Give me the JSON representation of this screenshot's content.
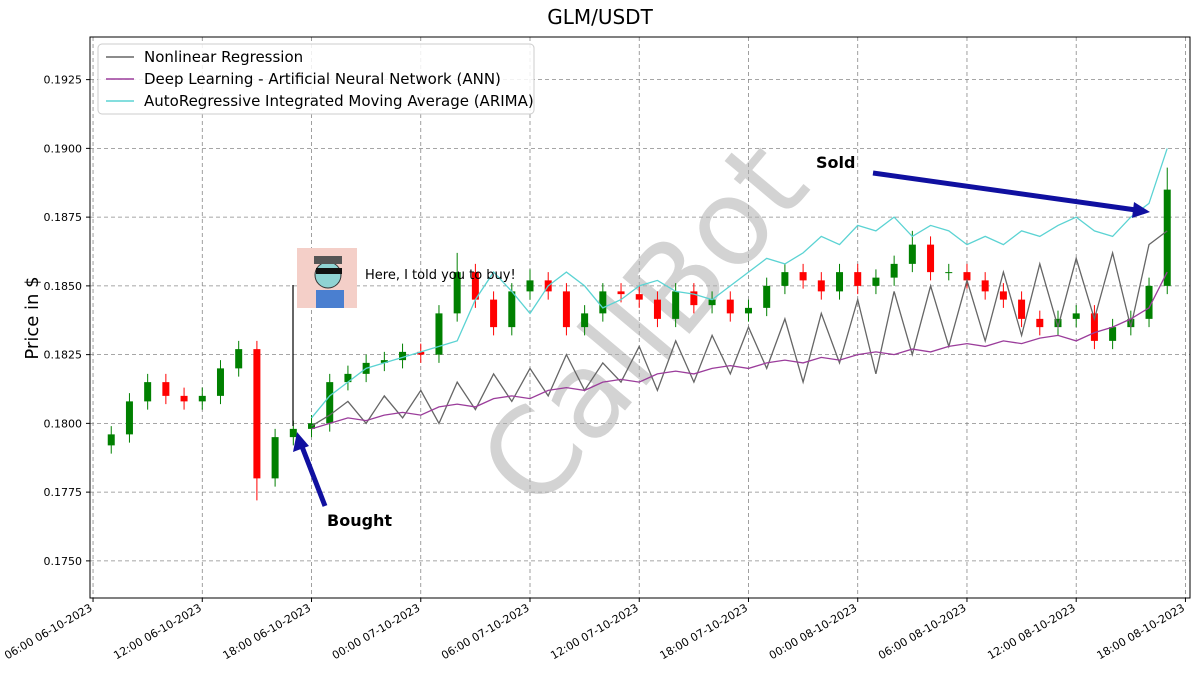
{
  "chart_data": {
    "type": "candlestick",
    "title": "GLM/USDT",
    "y_label": "Price in $",
    "watermark": "CallBot",
    "x": [
      "2023-10-06T07:00",
      "2023-10-06T08:00",
      "2023-10-06T09:00",
      "2023-10-06T10:00",
      "2023-10-06T11:00",
      "2023-10-06T12:00",
      "2023-10-06T13:00",
      "2023-10-06T14:00",
      "2023-10-06T15:00",
      "2023-10-06T16:00",
      "2023-10-06T17:00",
      "2023-10-06T18:00",
      "2023-10-06T19:00",
      "2023-10-06T20:00",
      "2023-10-06T21:00",
      "2023-10-06T22:00",
      "2023-10-06T23:00",
      "2023-10-07T00:00",
      "2023-10-07T01:00",
      "2023-10-07T02:00",
      "2023-10-07T03:00",
      "2023-10-07T04:00",
      "2023-10-07T05:00",
      "2023-10-07T06:00",
      "2023-10-07T07:00",
      "2023-10-07T08:00",
      "2023-10-07T09:00",
      "2023-10-07T10:00",
      "2023-10-07T11:00",
      "2023-10-07T12:00",
      "2023-10-07T13:00",
      "2023-10-07T14:00",
      "2023-10-07T15:00",
      "2023-10-07T16:00",
      "2023-10-07T17:00",
      "2023-10-07T18:00",
      "2023-10-07T19:00",
      "2023-10-07T20:00",
      "2023-10-07T21:00",
      "2023-10-07T22:00",
      "2023-10-07T23:00",
      "2023-10-08T00:00",
      "2023-10-08T01:00",
      "2023-10-08T02:00",
      "2023-10-08T03:00",
      "2023-10-08T04:00",
      "2023-10-08T05:00",
      "2023-10-08T06:00",
      "2023-10-08T07:00",
      "2023-10-08T08:00",
      "2023-10-08T09:00",
      "2023-10-08T10:00",
      "2023-10-08T11:00",
      "2023-10-08T12:00",
      "2023-10-08T13:00",
      "2023-10-08T14:00",
      "2023-10-08T15:00",
      "2023-10-08T16:00",
      "2023-10-08T17:00"
    ],
    "open": [
      0.1792,
      0.1796,
      0.1808,
      0.1815,
      0.181,
      0.1808,
      0.181,
      0.182,
      0.1827,
      0.178,
      0.1795,
      0.1798,
      0.18,
      0.1815,
      0.1818,
      0.1822,
      0.1823,
      0.1826,
      0.1825,
      0.184,
      0.1855,
      0.1845,
      0.1835,
      0.1848,
      0.1852,
      0.1848,
      0.1835,
      0.184,
      0.1848,
      0.1847,
      0.1845,
      0.1838,
      0.1848,
      0.1843,
      0.1845,
      0.184,
      0.1842,
      0.185,
      0.1855,
      0.1852,
      0.1848,
      0.1855,
      0.185,
      0.1853,
      0.1858,
      0.1865,
      0.1855,
      0.1855,
      0.1852,
      0.1848,
      0.1845,
      0.1838,
      0.1835,
      0.1838,
      0.184,
      0.183,
      0.1835,
      0.1838,
      0.185
    ],
    "high": [
      0.1799,
      0.1811,
      0.1818,
      0.1818,
      0.1813,
      0.1813,
      0.1823,
      0.183,
      0.183,
      0.1798,
      0.1801,
      0.1803,
      0.1818,
      0.1821,
      0.1825,
      0.1826,
      0.1829,
      0.1829,
      0.1843,
      0.1862,
      0.1858,
      0.1848,
      0.1851,
      0.1856,
      0.1855,
      0.1851,
      0.1843,
      0.1851,
      0.1851,
      0.185,
      0.1848,
      0.1851,
      0.1851,
      0.1848,
      0.1848,
      0.1845,
      0.1853,
      0.1858,
      0.1858,
      0.1855,
      0.1858,
      0.1858,
      0.1856,
      0.1861,
      0.187,
      0.1868,
      0.1858,
      0.1858,
      0.1855,
      0.1851,
      0.1848,
      0.1841,
      0.1841,
      0.1843,
      0.1843,
      0.1838,
      0.1841,
      0.1853,
      0.1893
    ],
    "low": [
      0.1789,
      0.1793,
      0.1805,
      0.1807,
      0.1805,
      0.1805,
      0.1807,
      0.1817,
      0.1772,
      0.1777,
      0.1792,
      0.1795,
      0.1797,
      0.1812,
      0.1815,
      0.1819,
      0.182,
      0.1822,
      0.1822,
      0.1837,
      0.1842,
      0.1832,
      0.1832,
      0.1845,
      0.1845,
      0.1832,
      0.1832,
      0.1837,
      0.1844,
      0.1842,
      0.1835,
      0.1835,
      0.184,
      0.184,
      0.1837,
      0.1837,
      0.1839,
      0.1847,
      0.1849,
      0.1845,
      0.1845,
      0.1847,
      0.1847,
      0.185,
      0.1855,
      0.1852,
      0.1852,
      0.1849,
      0.1845,
      0.1842,
      0.1835,
      0.1832,
      0.1832,
      0.1835,
      0.1827,
      0.1827,
      0.1832,
      0.1835,
      0.1847
    ],
    "close": [
      0.1796,
      0.1808,
      0.1815,
      0.181,
      0.1808,
      0.181,
      0.182,
      0.1827,
      0.178,
      0.1795,
      0.1798,
      0.18,
      0.1815,
      0.1818,
      0.1822,
      0.1823,
      0.1826,
      0.1825,
      0.184,
      0.1855,
      0.1845,
      0.1835,
      0.1848,
      0.1852,
      0.1848,
      0.1835,
      0.184,
      0.1848,
      0.1847,
      0.1845,
      0.1838,
      0.1848,
      0.1843,
      0.1845,
      0.184,
      0.1842,
      0.185,
      0.1855,
      0.1852,
      0.1848,
      0.1855,
      0.185,
      0.1853,
      0.1858,
      0.1865,
      0.1855,
      0.1855,
      0.1852,
      0.1848,
      0.1845,
      0.1838,
      0.1835,
      0.1838,
      0.184,
      0.183,
      0.1835,
      0.1838,
      0.185,
      0.1885
    ],
    "up_color": "#008000",
    "down_color": "#ff0000",
    "series": [
      {
        "name": "Nonlinear Regression",
        "color": "#666666",
        "values": [
          null,
          null,
          null,
          null,
          null,
          null,
          null,
          null,
          null,
          null,
          null,
          0.1799,
          0.1803,
          0.1808,
          0.18,
          0.181,
          0.1802,
          0.1812,
          0.18,
          0.1815,
          0.1805,
          0.1818,
          0.1808,
          0.182,
          0.181,
          0.1825,
          0.1812,
          0.1822,
          0.1815,
          0.1828,
          0.1812,
          0.183,
          0.1815,
          0.1832,
          0.1818,
          0.1835,
          0.182,
          0.1838,
          0.1815,
          0.184,
          0.1822,
          0.1845,
          0.1818,
          0.1848,
          0.1825,
          0.185,
          0.1828,
          0.1852,
          0.183,
          0.1855,
          0.1832,
          0.1858,
          0.1835,
          0.186,
          0.1838,
          0.1862,
          0.1835,
          0.1865,
          0.187
        ]
      },
      {
        "name": "Deep Learning - Artificial Neural Network (ANN)",
        "color": "#9b3d9b",
        "values": [
          null,
          null,
          null,
          null,
          null,
          null,
          null,
          null,
          null,
          null,
          null,
          0.1798,
          0.18,
          0.1802,
          0.1801,
          0.1803,
          0.1804,
          0.1803,
          0.1806,
          0.1807,
          0.1806,
          0.1809,
          0.181,
          0.1809,
          0.1812,
          0.1813,
          0.1812,
          0.1815,
          0.1816,
          0.1815,
          0.1818,
          0.1819,
          0.1818,
          0.182,
          0.1821,
          0.182,
          0.1822,
          0.1823,
          0.1822,
          0.1824,
          0.1823,
          0.1825,
          0.1826,
          0.1825,
          0.1827,
          0.1826,
          0.1828,
          0.1829,
          0.1828,
          0.183,
          0.1829,
          0.1831,
          0.1832,
          0.183,
          0.1833,
          0.1835,
          0.1838,
          0.1842,
          0.1855
        ]
      },
      {
        "name": "AutoRegressive Integrated Moving Average (ARIMA)",
        "color": "#5bd3d3",
        "values": [
          null,
          null,
          null,
          null,
          null,
          null,
          null,
          null,
          null,
          null,
          null,
          0.1802,
          0.181,
          0.1815,
          0.182,
          0.1822,
          0.1824,
          0.1826,
          0.1828,
          0.183,
          0.1845,
          0.1855,
          0.1848,
          0.184,
          0.185,
          0.1855,
          0.185,
          0.1842,
          0.1845,
          0.185,
          0.1852,
          0.1848,
          0.1847,
          0.1845,
          0.185,
          0.1855,
          0.186,
          0.1858,
          0.1862,
          0.1868,
          0.1865,
          0.1872,
          0.187,
          0.1875,
          0.1868,
          0.1872,
          0.187,
          0.1865,
          0.1868,
          0.1865,
          0.187,
          0.1868,
          0.1872,
          0.1875,
          0.187,
          0.1868,
          0.1875,
          0.188,
          0.19
        ]
      }
    ],
    "xlim": [
      "2023-10-06T05:50",
      "2023-10-08T18:15"
    ],
    "xticks": [
      {
        "value": "2023-10-06T06:00",
        "label": "06:00 06-10-2023"
      },
      {
        "value": "2023-10-06T12:00",
        "label": "12:00 06-10-2023"
      },
      {
        "value": "2023-10-06T18:00",
        "label": "18:00 06-10-2023"
      },
      {
        "value": "2023-10-07T00:00",
        "label": "00:00 07-10-2023"
      },
      {
        "value": "2023-10-07T06:00",
        "label": "06:00 07-10-2023"
      },
      {
        "value": "2023-10-07T12:00",
        "label": "12:00 07-10-2023"
      },
      {
        "value": "2023-10-07T18:00",
        "label": "18:00 07-10-2023"
      },
      {
        "value": "2023-10-08T00:00",
        "label": "00:00 08-10-2023"
      },
      {
        "value": "2023-10-08T06:00",
        "label": "06:00 08-10-2023"
      },
      {
        "value": "2023-10-08T12:00",
        "label": "12:00 08-10-2023"
      },
      {
        "value": "2023-10-08T18:00",
        "label": "18:00 08-10-2023"
      }
    ],
    "ylim": [
      0.17365,
      0.19405
    ],
    "yticks": [
      {
        "value": 0.175,
        "label": "0.1750"
      },
      {
        "value": 0.1775,
        "label": "0.1775"
      },
      {
        "value": 0.18,
        "label": "0.1800"
      },
      {
        "value": 0.1825,
        "label": "0.1825"
      },
      {
        "value": 0.185,
        "label": "0.1850"
      },
      {
        "value": 0.1875,
        "label": "0.1875"
      },
      {
        "value": 0.19,
        "label": "0.1900"
      },
      {
        "value": 0.1925,
        "label": "0.1925"
      }
    ],
    "grid": true,
    "legend_position": "upper-left",
    "annotations": {
      "sold": "Sold",
      "bought": "Bought",
      "callout": "Here, I told you to buy!"
    }
  }
}
